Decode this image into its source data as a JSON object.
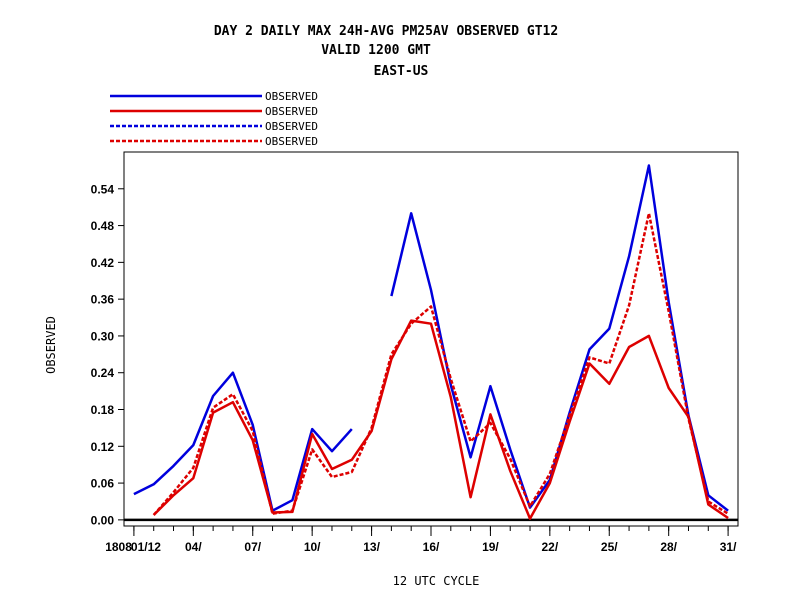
{
  "chart_data": {
    "type": "line",
    "title_lines": [
      "DAY 2 DAILY MAX   24H-AVG PM25AV OBSERVED GT12",
      "VALID 1200 GMT",
      "EAST-US"
    ],
    "xlabel": "12 UTC CYCLE",
    "ylabel": "OBSERVED",
    "x_tick_labels": [
      "1808",
      "01/12",
      "04/",
      "07/",
      "10/",
      "13/",
      "16/",
      "19/",
      "22/",
      "25/",
      "28/",
      "31/"
    ],
    "x_tick_days": [
      1,
      4,
      7,
      10,
      13,
      16,
      19,
      22,
      25,
      28,
      31
    ],
    "xlim": [
      0.5,
      31.5
    ],
    "ylim": [
      -0.01,
      0.6
    ],
    "y_ticks": [
      "0.00",
      "0.06",
      "0.12",
      "0.18",
      "0.24",
      "0.30",
      "0.36",
      "0.42",
      "0.48",
      "0.54"
    ],
    "grid": false,
    "legend_position": "top-left",
    "series": [
      {
        "name": "OBSERVED",
        "color": "#0000dd",
        "dash": "solid",
        "values": [
          [
            1,
            0.042
          ],
          [
            2,
            0.058
          ],
          [
            3,
            0.088
          ],
          [
            4,
            0.122
          ],
          [
            5,
            0.202
          ],
          [
            6,
            0.24
          ],
          [
            7,
            0.155
          ],
          [
            8,
            0.015
          ],
          [
            9,
            0.032
          ],
          [
            10,
            0.148
          ],
          [
            11,
            0.112
          ],
          [
            12,
            0.148
          ],
          null,
          [
            14,
            0.365
          ],
          [
            15,
            0.5
          ],
          [
            16,
            0.375
          ],
          [
            17,
            0.22
          ],
          [
            18,
            0.102
          ],
          [
            19,
            0.218
          ],
          [
            20,
            0.115
          ],
          [
            21,
            0.02
          ],
          [
            22,
            0.065
          ],
          [
            23,
            0.175
          ],
          [
            24,
            0.278
          ],
          [
            25,
            0.312
          ],
          [
            26,
            0.43
          ],
          [
            27,
            0.578
          ],
          [
            28,
            0.355
          ],
          [
            29,
            0.17
          ],
          [
            30,
            0.04
          ],
          [
            31,
            0.015
          ]
        ]
      },
      {
        "name": "OBSERVED",
        "color": "#dd0000",
        "dash": "solid",
        "values": [
          [
            2,
            0.008
          ],
          [
            3,
            0.04
          ],
          [
            4,
            0.068
          ],
          [
            5,
            0.175
          ],
          [
            6,
            0.192
          ],
          [
            7,
            0.13
          ],
          [
            8,
            0.012
          ],
          [
            9,
            0.013
          ],
          [
            10,
            0.14
          ],
          [
            11,
            0.083
          ],
          [
            12,
            0.098
          ],
          [
            13,
            0.145
          ],
          [
            14,
            0.262
          ],
          [
            15,
            0.325
          ],
          [
            16,
            0.32
          ],
          [
            17,
            0.2
          ],
          [
            18,
            0.037
          ],
          [
            19,
            0.172
          ],
          [
            20,
            0.08
          ],
          [
            21,
            0.002
          ],
          [
            22,
            0.06
          ],
          [
            23,
            0.16
          ],
          [
            24,
            0.255
          ],
          [
            25,
            0.222
          ],
          [
            26,
            0.282
          ],
          [
            27,
            0.3
          ],
          [
            28,
            0.215
          ],
          [
            29,
            0.168
          ],
          [
            30,
            0.025
          ],
          [
            31,
            0.003
          ]
        ]
      },
      {
        "name": "OBSERVED",
        "color": "#0000dd",
        "dash": "dashed",
        "values": []
      },
      {
        "name": "OBSERVED",
        "color": "#dd0000",
        "dash": "dashed",
        "values": [
          [
            2,
            0.008
          ],
          [
            3,
            0.045
          ],
          [
            4,
            0.085
          ],
          [
            5,
            0.183
          ],
          [
            6,
            0.205
          ],
          [
            7,
            0.145
          ],
          [
            8,
            0.01
          ],
          [
            9,
            0.015
          ],
          [
            10,
            0.115
          ],
          [
            11,
            0.07
          ],
          [
            12,
            0.078
          ],
          [
            13,
            0.15
          ],
          [
            14,
            0.27
          ],
          [
            15,
            0.32
          ],
          [
            16,
            0.348
          ],
          [
            17,
            0.23
          ],
          [
            18,
            0.128
          ],
          [
            19,
            0.158
          ],
          [
            20,
            0.1
          ],
          [
            21,
            0.022
          ],
          [
            22,
            0.075
          ],
          [
            23,
            0.17
          ],
          [
            24,
            0.265
          ],
          [
            25,
            0.255
          ],
          [
            26,
            0.35
          ],
          [
            27,
            0.5
          ],
          [
            28,
            0.34
          ],
          [
            29,
            0.165
          ],
          [
            30,
            0.03
          ],
          [
            31,
            0.01
          ]
        ]
      }
    ]
  }
}
